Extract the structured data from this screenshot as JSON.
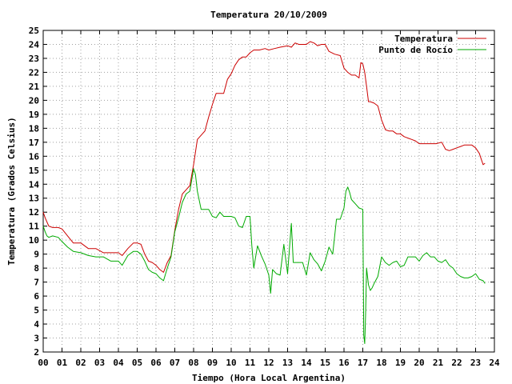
{
  "colors": {
    "temperature": "#cc0000",
    "dew_point": "#00aa00",
    "frame": "#000000",
    "grid": "#a0a0a0"
  },
  "chart_data": {
    "type": "line",
    "title": "Temperatura 20/10/2009",
    "xlabel": "Tiempo (Hora Local Argentina)",
    "ylabel": "Temperatura (Grados Celsius)",
    "xlim": [
      0,
      24
    ],
    "ylim": [
      2,
      25
    ],
    "xticks": [
      "00",
      "01",
      "02",
      "03",
      "04",
      "05",
      "06",
      "07",
      "08",
      "09",
      "10",
      "11",
      "12",
      "13",
      "14",
      "15",
      "16",
      "17",
      "18",
      "19",
      "20",
      "21",
      "22",
      "23",
      "24"
    ],
    "yticks": [
      2,
      3,
      4,
      5,
      6,
      7,
      8,
      9,
      10,
      11,
      12,
      13,
      14,
      15,
      16,
      17,
      18,
      19,
      20,
      21,
      22,
      23,
      24,
      25
    ],
    "grid": true,
    "legend_position": "top-right",
    "series": [
      {
        "name": "Temperatura",
        "color": "#cc0000",
        "x": [
          0.0,
          0.1,
          0.2,
          0.3,
          0.5,
          0.8,
          1.0,
          1.3,
          1.6,
          2.0,
          2.4,
          2.8,
          3.2,
          3.6,
          4.0,
          4.2,
          4.5,
          4.8,
          5.0,
          5.2,
          5.4,
          5.6,
          5.8,
          6.0,
          6.2,
          6.4,
          6.6,
          6.8,
          7.0,
          7.2,
          7.4,
          7.6,
          7.8,
          8.0,
          8.2,
          8.4,
          8.6,
          8.8,
          9.0,
          9.2,
          9.4,
          9.6,
          9.8,
          10.0,
          10.2,
          10.4,
          10.6,
          10.8,
          11.0,
          11.2,
          11.5,
          11.8,
          12.0,
          12.3,
          12.6,
          13.0,
          13.2,
          13.4,
          13.6,
          14.0,
          14.2,
          14.4,
          14.6,
          14.8,
          15.0,
          15.2,
          15.5,
          15.8,
          16.0,
          16.2,
          16.4,
          16.6,
          16.8,
          16.9,
          17.0,
          17.1,
          17.2,
          17.3,
          17.4,
          17.6,
          17.8,
          18.0,
          18.2,
          18.4,
          18.6,
          18.8,
          19.0,
          19.2,
          19.4,
          19.6,
          19.8,
          20.0,
          20.3,
          20.6,
          20.9,
          21.2,
          21.4,
          21.6,
          21.8,
          22.0,
          22.2,
          22.4,
          22.6,
          22.8,
          23.0,
          23.2,
          23.3,
          23.4,
          23.5
        ],
        "values": [
          12.0,
          11.6,
          11.3,
          11.0,
          10.9,
          10.9,
          10.8,
          10.3,
          9.8,
          9.8,
          9.4,
          9.4,
          9.1,
          9.1,
          9.1,
          8.9,
          9.4,
          9.8,
          9.8,
          9.7,
          9.0,
          8.5,
          8.4,
          8.2,
          7.9,
          7.7,
          8.4,
          8.9,
          10.7,
          12.2,
          13.3,
          13.6,
          13.9,
          15.4,
          17.2,
          17.5,
          17.8,
          18.8,
          19.7,
          20.5,
          20.5,
          20.5,
          21.5,
          21.9,
          22.5,
          22.9,
          23.1,
          23.1,
          23.4,
          23.6,
          23.6,
          23.7,
          23.6,
          23.7,
          23.8,
          23.9,
          23.8,
          24.1,
          24.0,
          24.0,
          24.2,
          24.1,
          23.9,
          24.0,
          24.0,
          23.5,
          23.3,
          23.2,
          22.3,
          22.0,
          21.8,
          21.8,
          21.6,
          22.7,
          22.6,
          22.0,
          21.0,
          19.9,
          19.9,
          19.8,
          19.6,
          18.6,
          17.9,
          17.8,
          17.8,
          17.6,
          17.6,
          17.4,
          17.3,
          17.2,
          17.1,
          16.9,
          16.9,
          16.9,
          16.9,
          17.0,
          16.5,
          16.4,
          16.5,
          16.6,
          16.7,
          16.8,
          16.8,
          16.8,
          16.6,
          16.2,
          15.8,
          15.4,
          15.5
        ]
      },
      {
        "name": "Punto de Rocío",
        "color": "#00aa00",
        "x": [
          0.0,
          0.1,
          0.2,
          0.3,
          0.5,
          0.8,
          1.0,
          1.3,
          1.6,
          2.0,
          2.4,
          2.8,
          3.2,
          3.6,
          4.0,
          4.2,
          4.5,
          4.8,
          5.0,
          5.2,
          5.4,
          5.6,
          5.8,
          6.0,
          6.2,
          6.4,
          6.6,
          6.8,
          7.0,
          7.2,
          7.4,
          7.6,
          7.8,
          8.0,
          8.1,
          8.2,
          8.4,
          8.6,
          8.8,
          9.0,
          9.2,
          9.4,
          9.6,
          9.8,
          10.0,
          10.2,
          10.4,
          10.6,
          10.8,
          11.0,
          11.1,
          11.2,
          11.4,
          11.6,
          11.8,
          12.0,
          12.1,
          12.2,
          12.4,
          12.6,
          12.8,
          13.0,
          13.1,
          13.2,
          13.3,
          13.5,
          13.8,
          14.0,
          14.2,
          14.4,
          14.6,
          14.8,
          15.0,
          15.2,
          15.4,
          15.6,
          15.8,
          16.0,
          16.1,
          16.2,
          16.3,
          16.4,
          16.6,
          16.8,
          17.0,
          17.05,
          17.1,
          17.15,
          17.2,
          17.3,
          17.4,
          17.5,
          17.6,
          17.8,
          18.0,
          18.2,
          18.4,
          18.6,
          18.8,
          19.0,
          19.2,
          19.4,
          19.6,
          19.8,
          20.0,
          20.2,
          20.4,
          20.6,
          20.8,
          21.0,
          21.2,
          21.4,
          21.6,
          21.8,
          22.0,
          22.2,
          22.4,
          22.6,
          22.8,
          23.0,
          23.2,
          23.4,
          23.5
        ],
        "values": [
          11.0,
          10.6,
          10.3,
          10.2,
          10.3,
          10.2,
          9.9,
          9.5,
          9.2,
          9.1,
          8.9,
          8.8,
          8.8,
          8.5,
          8.5,
          8.2,
          8.9,
          9.2,
          9.2,
          9.0,
          8.5,
          7.9,
          7.7,
          7.6,
          7.3,
          7.1,
          8.0,
          8.8,
          10.6,
          11.6,
          12.7,
          13.3,
          13.5,
          15.1,
          14.7,
          13.5,
          12.2,
          12.2,
          12.2,
          11.7,
          11.6,
          12.0,
          11.7,
          11.7,
          11.7,
          11.6,
          11.0,
          10.9,
          11.7,
          11.7,
          9.6,
          8.0,
          9.6,
          8.9,
          8.3,
          7.5,
          6.2,
          7.9,
          7.6,
          7.5,
          9.7,
          7.6,
          9.4,
          11.2,
          8.4,
          8.4,
          8.4,
          7.5,
          9.1,
          8.6,
          8.3,
          7.8,
          8.5,
          9.5,
          9.0,
          11.5,
          11.5,
          12.3,
          13.5,
          13.8,
          13.4,
          12.9,
          12.6,
          12.3,
          12.2,
          3.2,
          2.6,
          4.7,
          8.0,
          6.8,
          6.4,
          6.6,
          6.9,
          7.4,
          8.8,
          8.4,
          8.2,
          8.4,
          8.5,
          8.1,
          8.2,
          8.8,
          8.8,
          8.8,
          8.5,
          8.9,
          9.1,
          8.8,
          8.8,
          8.5,
          8.4,
          8.6,
          8.2,
          8.0,
          7.6,
          7.4,
          7.3,
          7.3,
          7.4,
          7.6,
          7.2,
          7.1,
          6.9
        ]
      }
    ]
  }
}
